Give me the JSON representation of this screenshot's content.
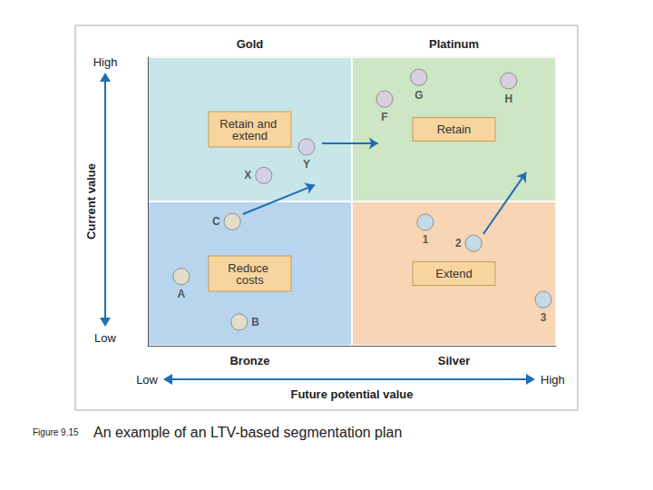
{
  "chart_data": {
    "type": "scatter",
    "caption": {
      "number": "Figure 9.15",
      "text": "An example of an LTV-based segmentation plan"
    },
    "x_label": "Future potential value",
    "y_label": "Current value",
    "x_end_labels": [
      "Low",
      "High"
    ],
    "y_end_labels": [
      "Low",
      "High"
    ],
    "xlim": [
      0,
      100
    ],
    "ylim": [
      0,
      100
    ],
    "xticks": [
      0,
      50,
      100
    ],
    "yticks": [
      0,
      50,
      100
    ],
    "tick_labels": false,
    "grid": true,
    "quadrants": [
      {
        "name": "Gold",
        "action": "Retain and extend",
        "position": "top-left",
        "color": "#c8e6ea"
      },
      {
        "name": "Platinum",
        "action": "Retain",
        "position": "top-right",
        "color": "#cde6c5"
      },
      {
        "name": "Bronze",
        "action": "Reduce costs",
        "position": "bottom-left",
        "color": "#b9d5ee"
      },
      {
        "name": "Silver",
        "action": "Extend",
        "position": "bottom-right",
        "color": "#f8d5b5"
      }
    ],
    "labels": [
      "F",
      "G",
      "H",
      "X",
      "Y",
      "C",
      "A",
      "B",
      "1",
      "2",
      "3"
    ],
    "x": [
      58,
      66.4,
      88.4,
      28.4,
      38.9,
      20.7,
      8.2,
      22.4,
      68,
      79.8,
      96.9
    ],
    "values": [
      85.5,
      93,
      91.8,
      59,
      68.9,
      43,
      24,
      8.2,
      42.8,
      35.5,
      16
    ],
    "colors": [
      "#d9cbe6",
      "#d9cbe6",
      "#d9cbe6",
      "#d9cbe6",
      "#d9cbe6",
      "#ece0bf",
      "#ece0bf",
      "#ece0bf",
      "#b5dcf2",
      "#b5dcf2",
      "#b5dcf2"
    ],
    "arrows": [
      {
        "from": [
          23.3,
          45.6
        ],
        "to": [
          40.9,
          55.7
        ]
      },
      {
        "from": [
          42.7,
          70.1
        ],
        "to": [
          56.4,
          70.1
        ]
      },
      {
        "from": [
          82.2,
          38.7
        ],
        "to": [
          92.7,
          60.1
        ]
      }
    ]
  }
}
